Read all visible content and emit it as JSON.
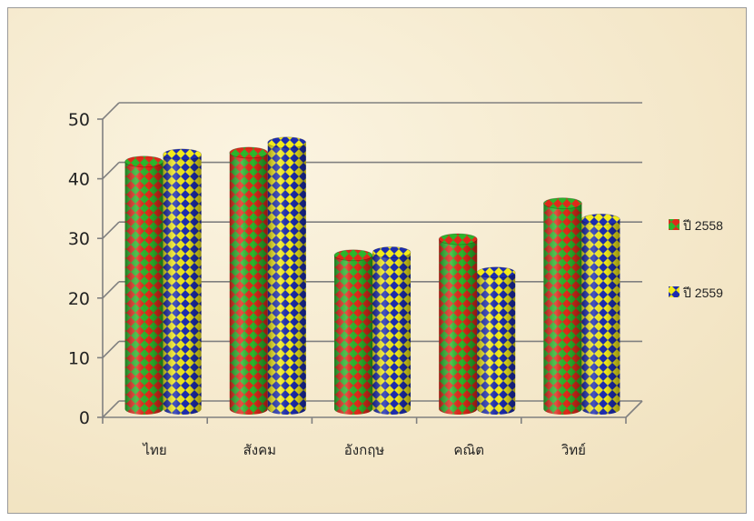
{
  "chart_data": {
    "type": "bar",
    "categories": [
      "ไทย",
      "สังคม",
      "อังกฤษ",
      "คณิต",
      "วิทย์"
    ],
    "series": [
      {
        "name": "ปี 2558",
        "values": [
          41.5,
          43,
          25.8,
          28.5,
          34.5
        ]
      },
      {
        "name": "ปี 2559",
        "values": [
          42.7,
          44.7,
          26.3,
          22.9,
          31.8
        ]
      }
    ],
    "ylim": [
      0,
      50
    ],
    "yticks": [
      0,
      10,
      20,
      30,
      40,
      50
    ],
    "grid": true,
    "style": "3d-cylinder",
    "legend_position": "right"
  },
  "colors": {
    "background": "#f6ecd2",
    "series_1_primary": "#2bb52b",
    "series_1_secondary": "#e02a1a",
    "series_2_primary": "#f2ea1c",
    "series_2_secondary": "#1c2cb0",
    "grid": "#808080"
  }
}
